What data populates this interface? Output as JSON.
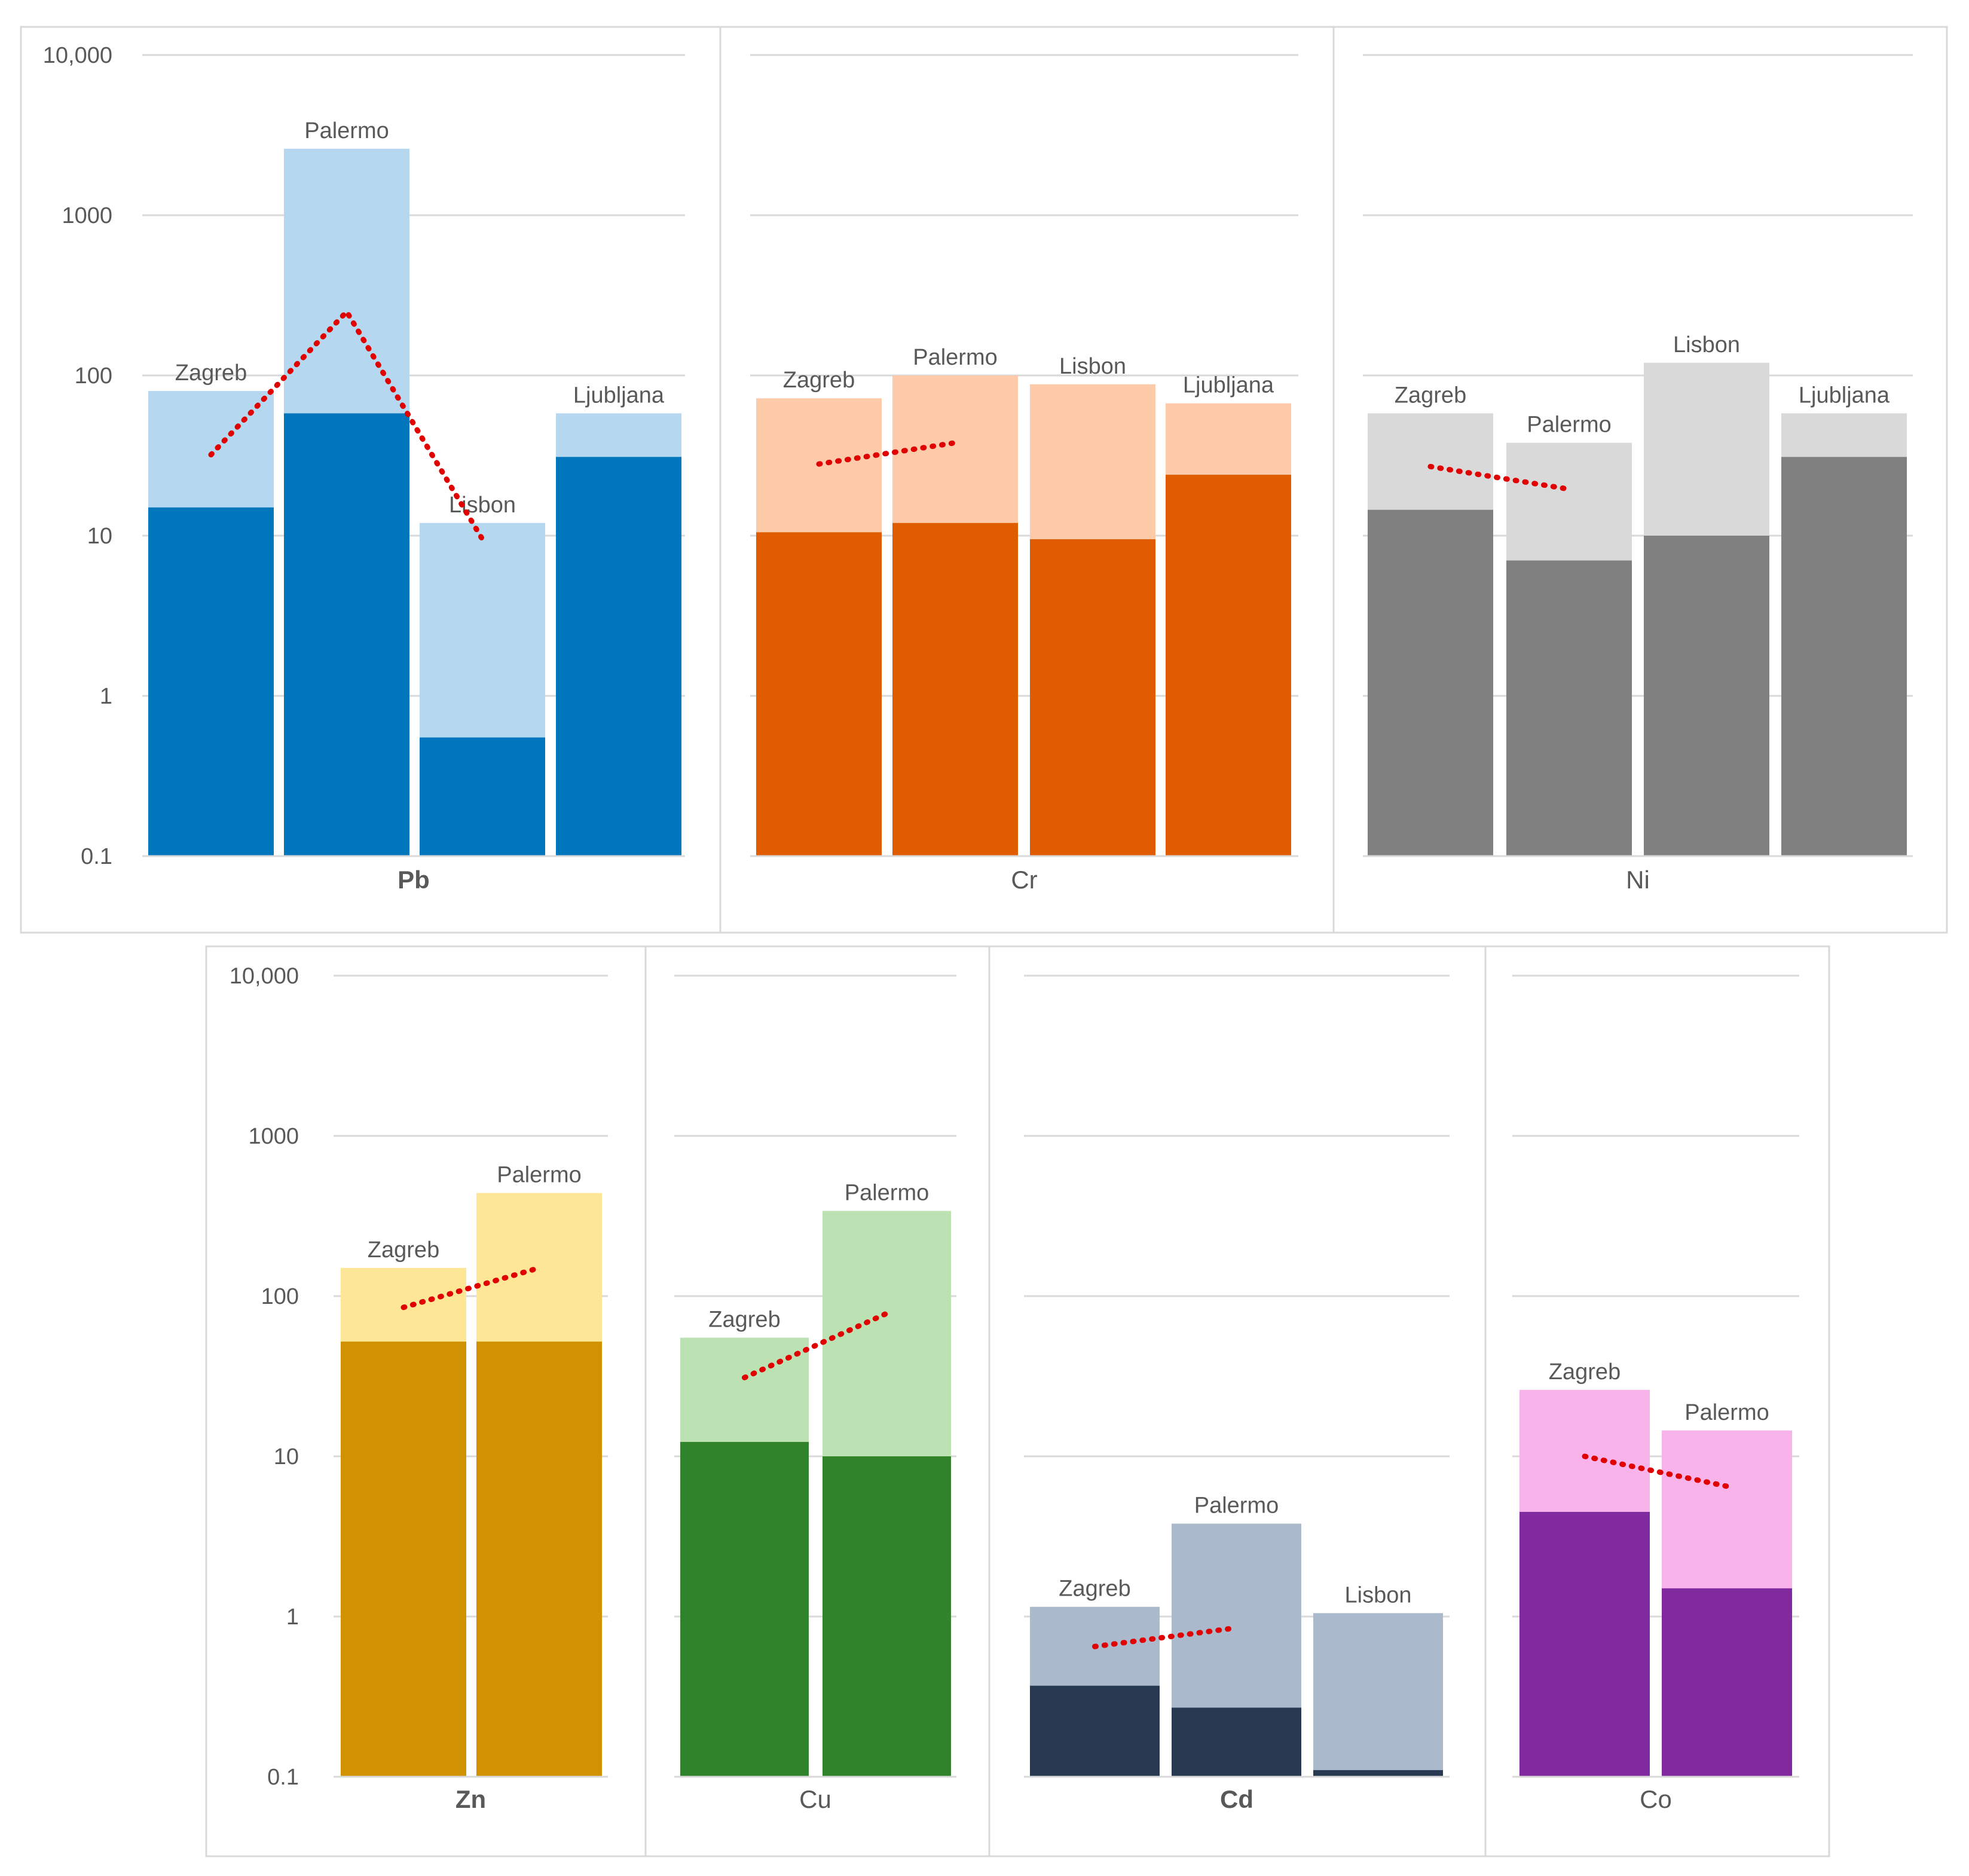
{
  "y_tick_labels": [
    "0.1",
    "1",
    "10",
    "100",
    "1000",
    "10,000"
  ],
  "chart_data": [
    {
      "type": "bar",
      "element": "Pb",
      "scale": "log",
      "ylim": [
        0.1,
        10000
      ],
      "grid": true,
      "colors": {
        "outer": "#b5d8f0",
        "inner": "#0076bd"
      },
      "categories": [
        "Zagreb",
        "Palermo",
        "Lisbon",
        "Ljubljana"
      ],
      "series": [
        {
          "name": "upper",
          "values": [
            80,
            2600,
            12,
            58
          ]
        },
        {
          "name": "lower",
          "values": [
            15,
            58,
            0.55,
            31
          ]
        }
      ],
      "trend": {
        "from": [
          0,
          32
        ],
        "peak": [
          1,
          250
        ],
        "to": [
          2,
          9.5
        ]
      }
    },
    {
      "type": "bar",
      "element": "Cr",
      "scale": "log",
      "ylim": [
        0.1,
        10000
      ],
      "grid": true,
      "colors": {
        "outer": "#fdcbaa",
        "inner": "#e05c00"
      },
      "categories": [
        "Zagreb",
        "Palermo",
        "Lisbon",
        "Ljubljana"
      ],
      "series": [
        {
          "name": "upper",
          "values": [
            72,
            100,
            88,
            67
          ]
        },
        {
          "name": "lower",
          "values": [
            10.5,
            12,
            9.5,
            24
          ]
        }
      ],
      "trend": {
        "from": [
          0,
          28
        ],
        "to": [
          1,
          38
        ]
      }
    },
    {
      "type": "bar",
      "element": "Ni",
      "scale": "log",
      "ylim": [
        0.1,
        10000
      ],
      "grid": true,
      "colors": {
        "outer": "#d9d9d9",
        "inner": "#808080"
      },
      "categories": [
        "Zagreb",
        "Palermo",
        "Lisbon",
        "Ljubljana"
      ],
      "series": [
        {
          "name": "upper",
          "values": [
            58,
            38,
            120,
            58
          ]
        },
        {
          "name": "lower",
          "values": [
            14.5,
            7,
            10,
            31
          ]
        }
      ],
      "trend": {
        "from": [
          0,
          27
        ],
        "to": [
          1,
          19.5
        ]
      }
    },
    {
      "type": "bar",
      "element": "Zn",
      "scale": "log",
      "ylim": [
        0.1,
        10000
      ],
      "grid": true,
      "colors": {
        "outer": "#fee697",
        "inner": "#d09200"
      },
      "categories": [
        "Zagreb",
        "Palermo"
      ],
      "series": [
        {
          "name": "upper",
          "values": [
            150,
            440
          ]
        },
        {
          "name": "lower",
          "values": [
            52,
            52
          ]
        }
      ],
      "trend": {
        "from": [
          0,
          85
        ],
        "to": [
          1,
          150
        ]
      }
    },
    {
      "type": "bar",
      "element": "Cu",
      "scale": "log",
      "ylim": [
        0.1,
        10000
      ],
      "grid": true,
      "colors": {
        "outer": "#bce2b4",
        "inner": "#31832b"
      },
      "categories": [
        "Zagreb",
        "Palermo"
      ],
      "series": [
        {
          "name": "upper",
          "values": [
            55,
            340
          ]
        },
        {
          "name": "lower",
          "values": [
            12.3,
            10
          ]
        }
      ],
      "trend": {
        "from": [
          0,
          31
        ],
        "to": [
          1,
          78
        ]
      }
    },
    {
      "type": "bar",
      "element": "Cd",
      "scale": "log",
      "ylim": [
        0.1,
        10000
      ],
      "grid": true,
      "colors": {
        "outer": "#aab9cc",
        "inner": "#283a52"
      },
      "categories": [
        "Zagreb",
        "Palermo",
        "Lisbon"
      ],
      "series": [
        {
          "name": "upper",
          "values": [
            1.15,
            3.8,
            1.05
          ]
        },
        {
          "name": "lower",
          "values": [
            0.37,
            0.27,
            0.11
          ]
        }
      ],
      "trend": {
        "from": [
          0,
          0.65
        ],
        "to": [
          1,
          0.85
        ]
      }
    },
    {
      "type": "bar",
      "element": "Co",
      "scale": "log",
      "ylim": [
        0.1,
        10000
      ],
      "grid": true,
      "colors": {
        "outer": "#f8b4ea",
        "inner": "#812aa0"
      },
      "categories": [
        "Zagreb",
        "Palermo"
      ],
      "series": [
        {
          "name": "upper",
          "values": [
            26,
            14.5
          ]
        },
        {
          "name": "lower",
          "values": [
            4.5,
            1.5
          ]
        }
      ],
      "trend": {
        "from": [
          0,
          10
        ],
        "to": [
          1,
          6.5
        ]
      }
    }
  ]
}
